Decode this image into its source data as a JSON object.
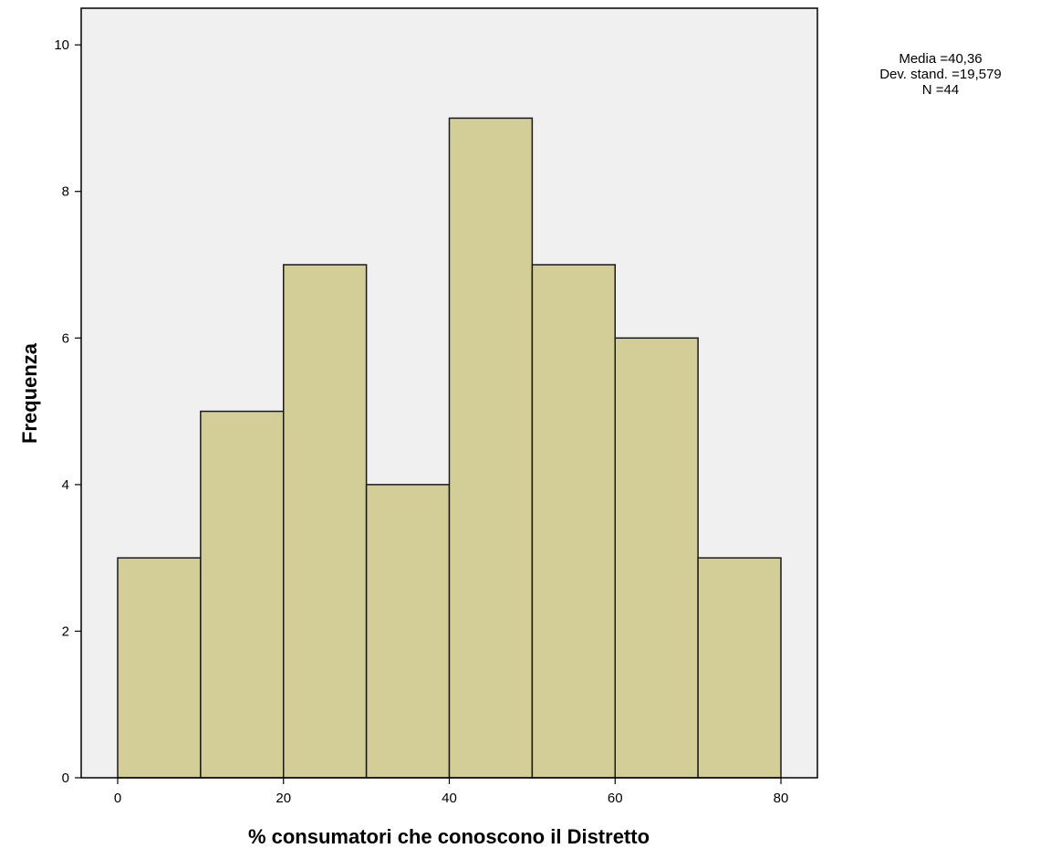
{
  "chart_data": {
    "type": "bar",
    "subtype": "histogram",
    "bins": [
      {
        "start": 0,
        "end": 10,
        "count": 3
      },
      {
        "start": 10,
        "end": 20,
        "count": 5
      },
      {
        "start": 20,
        "end": 30,
        "count": 7
      },
      {
        "start": 30,
        "end": 40,
        "count": 4
      },
      {
        "start": 40,
        "end": 50,
        "count": 9
      },
      {
        "start": 50,
        "end": 60,
        "count": 7
      },
      {
        "start": 60,
        "end": 70,
        "count": 6
      },
      {
        "start": 70,
        "end": 80,
        "count": 3
      }
    ],
    "xlabel": "% consumatori che conoscono il Distretto",
    "ylabel": "Frequenza",
    "xlim": [
      -4.4,
      84.4
    ],
    "ylim": [
      0,
      10.5
    ],
    "x_ticks": [
      0,
      20,
      40,
      60,
      80
    ],
    "y_ticks": [
      0,
      2,
      4,
      6,
      8,
      10
    ],
    "grid": false,
    "stats": {
      "mean_label": "Media =40,36",
      "sd_label": "Dev. stand. =19,579",
      "n_label": "N =44"
    },
    "colors": {
      "bar_fill": "#d3cd98",
      "bar_stroke": "#1a1a1a",
      "plot_background": "#f0f0f0",
      "frame": "#000000"
    }
  }
}
